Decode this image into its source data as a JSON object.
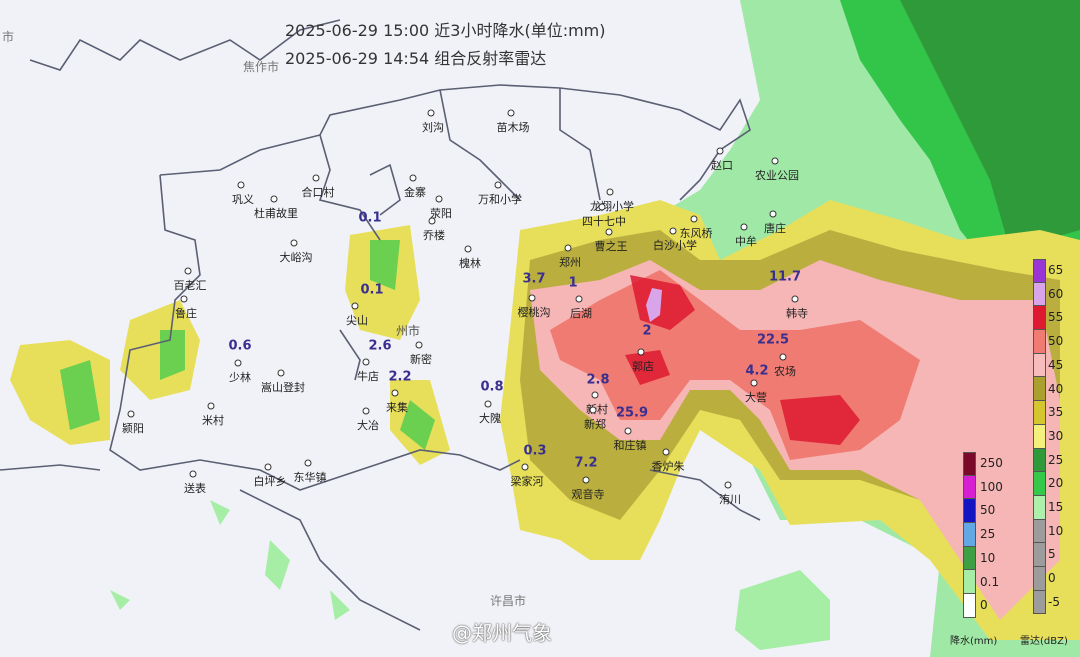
{
  "title_lines": [
    "2025-06-29 15:00 近3小时降水(单位:mm)",
    "2025-06-29 14:54 组合反射率雷达"
  ],
  "cities": [
    "焦作市",
    "许昌市",
    "州市",
    "市"
  ],
  "places": [
    {
      "name": "刘沟"
    },
    {
      "name": "苗木场"
    },
    {
      "name": "巩义"
    },
    {
      "name": "杜甫故里"
    },
    {
      "name": "合口村"
    },
    {
      "name": "金寨"
    },
    {
      "name": "荥阳"
    },
    {
      "name": "乔楼"
    },
    {
      "name": "万和小学"
    },
    {
      "name": "龙翔小学"
    },
    {
      "name": "四十七中"
    },
    {
      "name": "赵口"
    },
    {
      "name": "农业公园"
    },
    {
      "name": "东风桥"
    },
    {
      "name": "白沙小学"
    },
    {
      "name": "中牟"
    },
    {
      "name": "曹之王"
    },
    {
      "name": "郑州"
    },
    {
      "name": "大峪沟"
    },
    {
      "name": "槐林"
    },
    {
      "name": "百老汇"
    },
    {
      "name": "鲁庄"
    },
    {
      "name": "樱桃沟"
    },
    {
      "name": "后湖"
    },
    {
      "name": "韩寺"
    },
    {
      "name": "尖山"
    },
    {
      "name": "少林"
    },
    {
      "name": "嵩山登封"
    },
    {
      "name": "新密"
    },
    {
      "name": "牛店"
    },
    {
      "name": "来集"
    },
    {
      "name": "大冶"
    },
    {
      "name": "郭店"
    },
    {
      "name": "新村"
    },
    {
      "name": "和庄镇"
    },
    {
      "name": "香炉朱"
    },
    {
      "name": "梁家河"
    },
    {
      "name": "观音寺"
    },
    {
      "name": "大隗"
    },
    {
      "name": "东华镇"
    },
    {
      "name": "白坪乡"
    },
    {
      "name": "送表"
    },
    {
      "name": "颍阳"
    },
    {
      "name": "大营"
    },
    {
      "name": "农场"
    },
    {
      "name": "洧川"
    },
    {
      "name": "新郑"
    },
    {
      "name": "唐庄"
    },
    {
      "name": "米村"
    }
  ],
  "rainfall_mm": [
    "0.1",
    "0.1",
    "0.6",
    "2.6",
    "2.2",
    "0.8",
    "0.3",
    "7.2",
    "3.7",
    "1",
    "2",
    "2.8",
    "25.9",
    "22.5",
    "4.2",
    "11.7"
  ],
  "legend_rain": {
    "caption": "降水(mm)",
    "levels": [
      {
        "label": "250",
        "color": "#7a0a2a"
      },
      {
        "label": "100",
        "color": "#d61fd0"
      },
      {
        "label": "50",
        "color": "#1414c4"
      },
      {
        "label": "25",
        "color": "#62a8e4"
      },
      {
        "label": "10",
        "color": "#3f9f45"
      },
      {
        "label": "0.1",
        "color": "#a6eea6"
      },
      {
        "label": "0",
        "color": "#ffffff"
      }
    ]
  },
  "legend_radar": {
    "caption": "雷达(dBZ)",
    "levels": [
      {
        "label": "65",
        "color": "#9a35d6"
      },
      {
        "label": "60",
        "color": "#d8a4ea"
      },
      {
        "label": "55",
        "color": "#dd1a30"
      },
      {
        "label": "50",
        "color": "#ef7b72"
      },
      {
        "label": "45",
        "color": "#f7bcbc"
      },
      {
        "label": "40",
        "color": "#a9a030"
      },
      {
        "label": "35",
        "color": "#d5c52e"
      },
      {
        "label": "30",
        "color": "#f4f07e"
      },
      {
        "label": "25",
        "color": "#2f9a3a"
      },
      {
        "label": "20",
        "color": "#36c84b"
      },
      {
        "label": "15",
        "color": "#acf0ac"
      },
      {
        "label": "10",
        "color": "#9c9c9c"
      },
      {
        "label": "5",
        "color": "#9c9c9c"
      },
      {
        "label": "0",
        "color": "#9c9c9c"
      },
      {
        "label": "-5",
        "color": "#9c9c9c"
      }
    ]
  },
  "watermark": "@郑州气象"
}
